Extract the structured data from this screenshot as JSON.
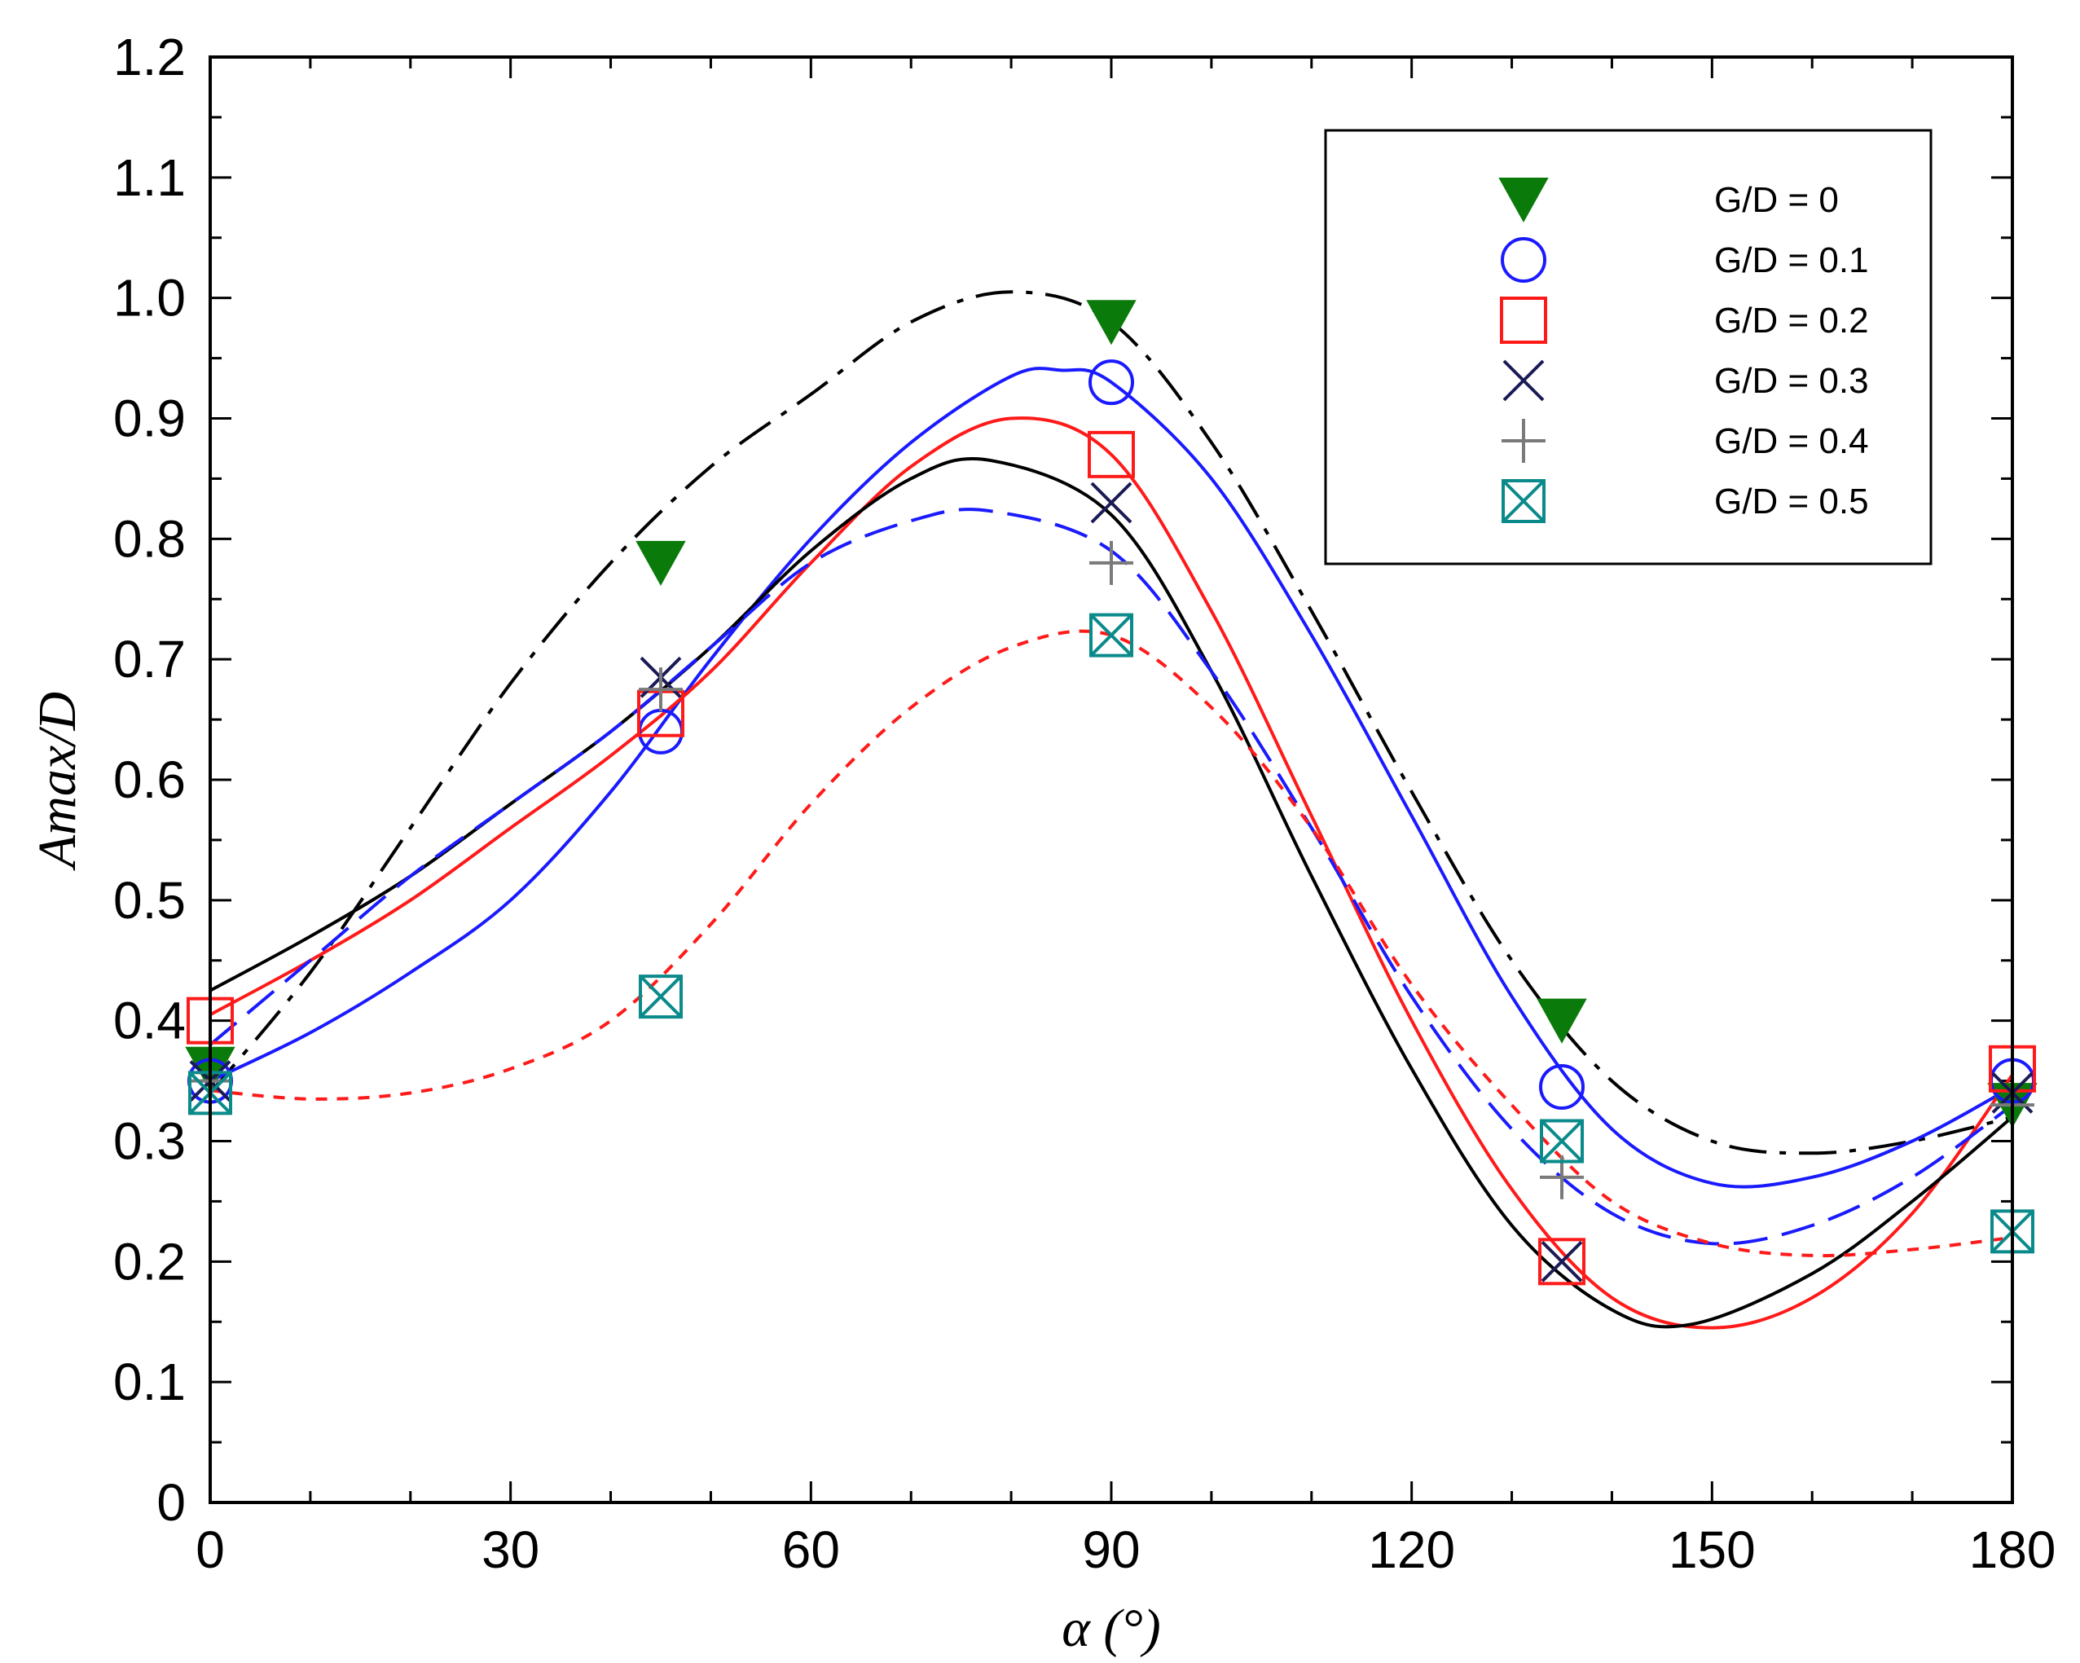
{
  "chart_data": {
    "type": "scatter",
    "title": "",
    "xlabel": "α (°)",
    "ylabel": "Amax/D",
    "xlim": [
      0,
      180
    ],
    "ylim": [
      0,
      1.2
    ],
    "x_ticks": [
      0,
      30,
      60,
      90,
      120,
      150,
      180
    ],
    "x_minor_step": 10,
    "y_ticks": [
      0,
      0.1,
      0.2,
      0.3,
      0.4,
      0.5,
      0.6,
      0.7,
      0.8,
      0.9,
      1.0,
      1.1,
      1.2
    ],
    "y_tick_labels": [
      "0",
      "0.1",
      "0.2",
      "0.3",
      "0.4",
      "0.5",
      "0.6",
      "0.7",
      "0.8",
      "0.9",
      "1.0",
      "1.1",
      "1.2"
    ],
    "y_minor_step": 0.05,
    "grid": false,
    "legend_position": "top-right",
    "series": [
      {
        "name": "G/D = 0",
        "marker": "triangle-down",
        "color": "#0a7a0a",
        "line_style": "dash-dot",
        "line_color": "#000000",
        "points": [
          [
            0,
            0.36
          ],
          [
            45,
            0.78
          ],
          [
            90,
            0.98
          ],
          [
            135,
            0.4
          ],
          [
            180,
            0.33
          ]
        ],
        "fit": [
          [
            0,
            0.34
          ],
          [
            10,
            0.44
          ],
          [
            20,
            0.56
          ],
          [
            30,
            0.68
          ],
          [
            40,
            0.78
          ],
          [
            50,
            0.86
          ],
          [
            60,
            0.92
          ],
          [
            70,
            0.98
          ],
          [
            80,
            1.005
          ],
          [
            90,
            0.98
          ],
          [
            100,
            0.88
          ],
          [
            110,
            0.74
          ],
          [
            120,
            0.59
          ],
          [
            130,
            0.45
          ],
          [
            140,
            0.35
          ],
          [
            150,
            0.3
          ],
          [
            160,
            0.29
          ],
          [
            170,
            0.3
          ],
          [
            180,
            0.32
          ]
        ]
      },
      {
        "name": "G/D = 0.1",
        "marker": "circle",
        "color": "#1a1aff",
        "line_style": "solid",
        "line_color": "#1a1aff",
        "points": [
          [
            0,
            0.35
          ],
          [
            45,
            0.64
          ],
          [
            90,
            0.93
          ],
          [
            135,
            0.345
          ],
          [
            180,
            0.35
          ]
        ],
        "fit": [
          [
            0,
            0.35
          ],
          [
            10,
            0.39
          ],
          [
            20,
            0.44
          ],
          [
            30,
            0.5
          ],
          [
            40,
            0.59
          ],
          [
            50,
            0.7
          ],
          [
            60,
            0.8
          ],
          [
            70,
            0.88
          ],
          [
            80,
            0.935
          ],
          [
            85,
            0.94
          ],
          [
            90,
            0.93
          ],
          [
            100,
            0.85
          ],
          [
            110,
            0.72
          ],
          [
            120,
            0.57
          ],
          [
            130,
            0.42
          ],
          [
            140,
            0.31
          ],
          [
            150,
            0.265
          ],
          [
            160,
            0.27
          ],
          [
            170,
            0.3
          ],
          [
            180,
            0.345
          ]
        ]
      },
      {
        "name": "G/D = 0.2",
        "marker": "square",
        "color": "#ff1a1a",
        "line_style": "solid",
        "line_color": "#ff1a1a",
        "points": [
          [
            0,
            0.4
          ],
          [
            45,
            0.655
          ],
          [
            90,
            0.87
          ],
          [
            135,
            0.2
          ],
          [
            180,
            0.36
          ]
        ],
        "fit": [
          [
            0,
            0.405
          ],
          [
            10,
            0.45
          ],
          [
            20,
            0.5
          ],
          [
            30,
            0.56
          ],
          [
            40,
            0.62
          ],
          [
            50,
            0.69
          ],
          [
            60,
            0.78
          ],
          [
            70,
            0.86
          ],
          [
            80,
            0.9
          ],
          [
            90,
            0.87
          ],
          [
            100,
            0.74
          ],
          [
            110,
            0.57
          ],
          [
            120,
            0.4
          ],
          [
            130,
            0.26
          ],
          [
            140,
            0.17
          ],
          [
            150,
            0.145
          ],
          [
            160,
            0.17
          ],
          [
            170,
            0.24
          ],
          [
            180,
            0.355
          ]
        ]
      },
      {
        "name": "G/D = 0.3",
        "marker": "x",
        "color": "#1a1a55",
        "line_style": "solid",
        "line_color": "#000000",
        "points": [
          [
            0,
            0.35
          ],
          [
            45,
            0.685
          ],
          [
            90,
            0.83
          ],
          [
            135,
            0.2
          ],
          [
            180,
            0.34
          ]
        ],
        "fit": [
          [
            0,
            0.425
          ],
          [
            10,
            0.47
          ],
          [
            20,
            0.52
          ],
          [
            30,
            0.58
          ],
          [
            40,
            0.64
          ],
          [
            50,
            0.71
          ],
          [
            60,
            0.79
          ],
          [
            70,
            0.85
          ],
          [
            78,
            0.865
          ],
          [
            90,
            0.82
          ],
          [
            100,
            0.69
          ],
          [
            110,
            0.52
          ],
          [
            120,
            0.36
          ],
          [
            130,
            0.23
          ],
          [
            140,
            0.16
          ],
          [
            148,
            0.148
          ],
          [
            160,
            0.19
          ],
          [
            170,
            0.25
          ],
          [
            180,
            0.32
          ]
        ]
      },
      {
        "name": "G/D = 0.4",
        "marker": "plus",
        "color": "#7a7a7a",
        "line_style": "dash",
        "line_color": "#1a1aff",
        "points": [
          [
            0,
            0.35
          ],
          [
            45,
            0.675
          ],
          [
            90,
            0.78
          ],
          [
            135,
            0.27
          ],
          [
            180,
            0.33
          ]
        ],
        "fit": [
          [
            0,
            0.38
          ],
          [
            10,
            0.45
          ],
          [
            20,
            0.52
          ],
          [
            30,
            0.58
          ],
          [
            40,
            0.64
          ],
          [
            50,
            0.71
          ],
          [
            60,
            0.78
          ],
          [
            70,
            0.815
          ],
          [
            78,
            0.823
          ],
          [
            90,
            0.79
          ],
          [
            100,
            0.69
          ],
          [
            110,
            0.56
          ],
          [
            120,
            0.42
          ],
          [
            130,
            0.31
          ],
          [
            140,
            0.24
          ],
          [
            150,
            0.215
          ],
          [
            160,
            0.23
          ],
          [
            170,
            0.27
          ],
          [
            180,
            0.33
          ]
        ]
      },
      {
        "name": "G/D = 0.5",
        "marker": "boxed-x",
        "color": "#0a8a8a",
        "line_style": "dot",
        "line_color": "#ff1a1a",
        "points": [
          [
            0,
            0.34
          ],
          [
            45,
            0.42
          ],
          [
            90,
            0.72
          ],
          [
            135,
            0.3
          ],
          [
            180,
            0.225
          ]
        ],
        "fit": [
          [
            0,
            0.342
          ],
          [
            10,
            0.335
          ],
          [
            20,
            0.34
          ],
          [
            30,
            0.36
          ],
          [
            40,
            0.4
          ],
          [
            50,
            0.48
          ],
          [
            60,
            0.58
          ],
          [
            70,
            0.66
          ],
          [
            80,
            0.71
          ],
          [
            90,
            0.72
          ],
          [
            100,
            0.66
          ],
          [
            110,
            0.56
          ],
          [
            120,
            0.43
          ],
          [
            130,
            0.33
          ],
          [
            140,
            0.25
          ],
          [
            150,
            0.215
          ],
          [
            160,
            0.205
          ],
          [
            170,
            0.21
          ],
          [
            180,
            0.22
          ]
        ]
      }
    ]
  }
}
